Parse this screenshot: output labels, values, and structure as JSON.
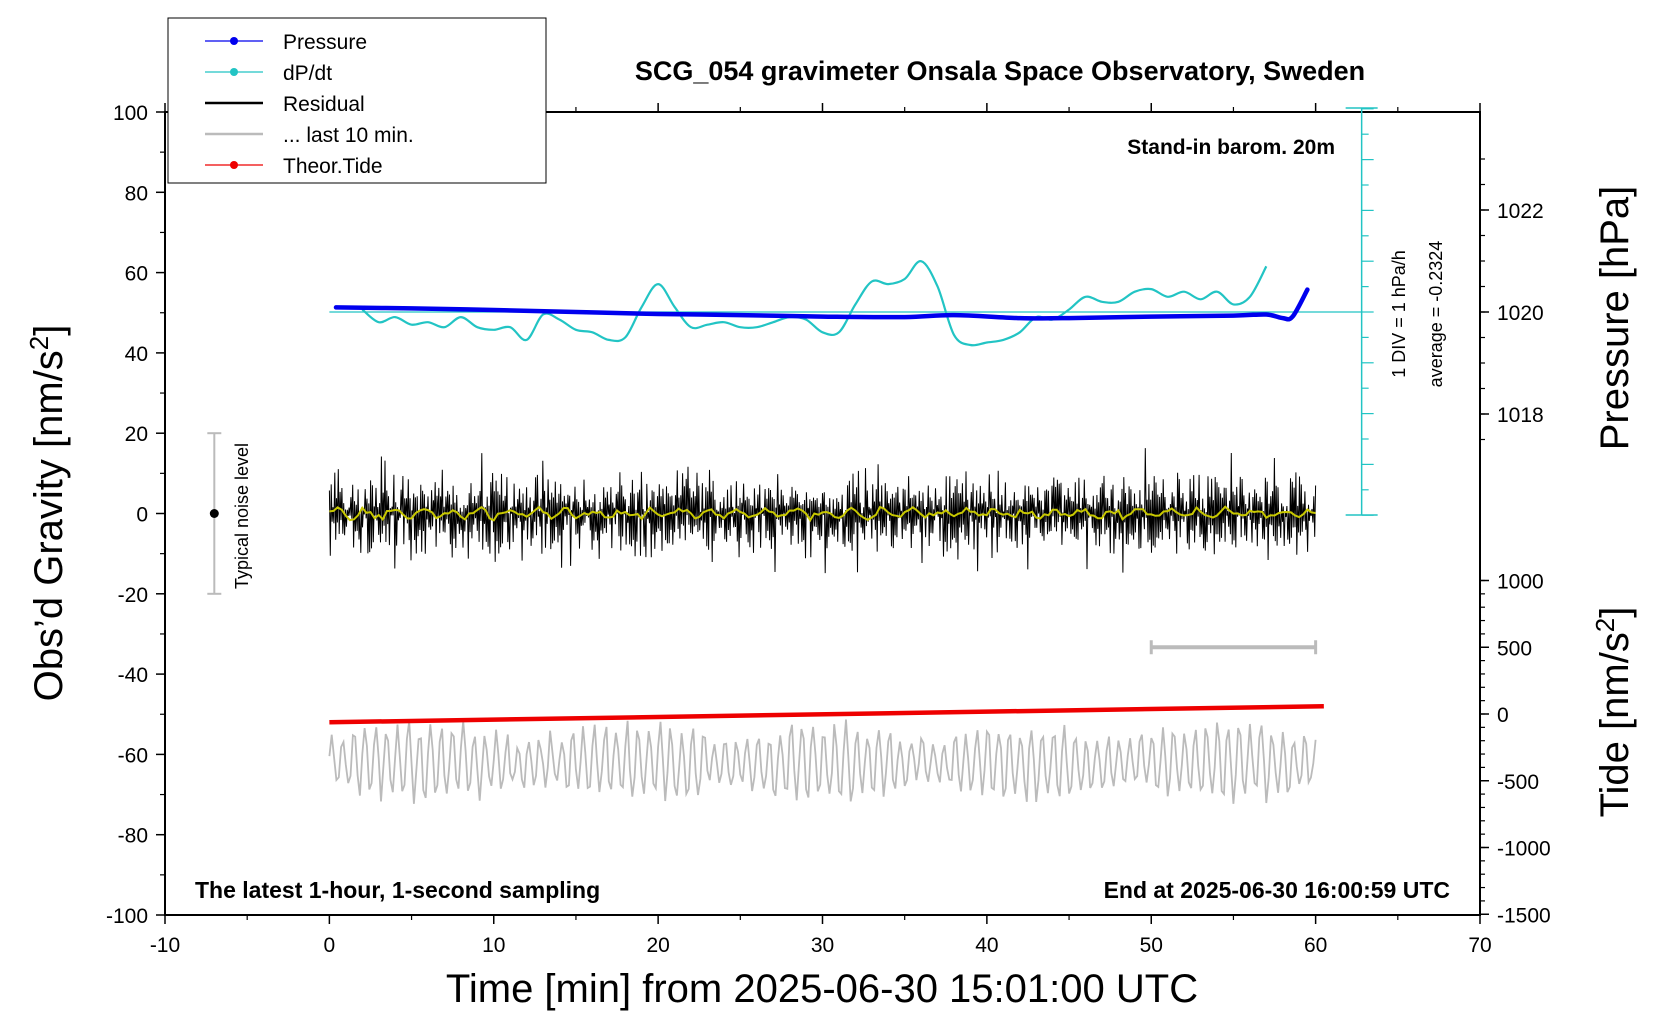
{
  "chart_data": {
    "type": "line",
    "title": "SCG_054 gravimeter Onsala Space Observatory, Sweden",
    "xlabel": "Time [min] from 2025-06-30 15:01:00 UTC",
    "ylabel": "Obs'd Gravity [nm/s²]",
    "ylabel_right_top": "Pressure [hPa]",
    "ylabel_right_bottom": "Tide [nm/s²]",
    "xlim": [
      -10,
      70
    ],
    "ylim": [
      -100,
      100
    ],
    "xticks": [
      "-10",
      "0",
      "10",
      "20",
      "30",
      "40",
      "50",
      "60",
      "70"
    ],
    "yticks": [
      "100",
      "80",
      "60",
      "40",
      "20",
      "0",
      "-20",
      "-40",
      "-60",
      "-80",
      "-100"
    ],
    "pressure_ticks": [
      "1022",
      "1020",
      "1018"
    ],
    "tide_ticks": [
      "1000",
      "500",
      "0",
      "-500",
      "-1000",
      "-1500"
    ],
    "annotations": {
      "barometer": "Stand-in barom. 20m",
      "div_label": "1 DIV = 1 hPa/h",
      "average_label": "average = -0.2324",
      "noise_label": "Typical noise level",
      "bottom_left": "The latest 1-hour, 1-second sampling",
      "bottom_right": "End at 2025-06-30 16:00:59 UTC"
    },
    "legend": [
      {
        "name": "Pressure",
        "color": "#0000ee",
        "marker": true
      },
      {
        "name": "dP/dt",
        "color": "#22c4c4",
        "marker": true
      },
      {
        "name": "Residual",
        "color": "#000000",
        "marker": false
      },
      {
        "name": "... last 10 min.",
        "color": "#bbbbbb",
        "marker": false
      },
      {
        "name": "Theor.Tide",
        "color": "#ee0000",
        "marker": true
      }
    ],
    "series": [
      {
        "name": "Pressure",
        "unit": "hPa",
        "x": [
          0.4,
          5,
          10,
          15,
          20,
          25,
          30,
          35,
          38,
          42,
          45,
          50,
          55,
          57,
          58,
          58.6,
          59.5
        ],
        "values": [
          1020.09,
          1020.07,
          1020.04,
          1020.0,
          1019.96,
          1019.94,
          1019.91,
          1019.9,
          1019.94,
          1019.88,
          1019.88,
          1019.91,
          1019.93,
          1019.95,
          1019.88,
          1019.91,
          1020.44
        ]
      },
      {
        "name": "dP/dt",
        "unit": "hPa/h",
        "x": [
          2,
          3,
          4,
          5,
          6,
          7,
          8,
          9,
          10,
          11,
          12,
          13,
          14,
          15,
          16,
          17,
          18,
          19,
          20,
          21,
          22,
          23,
          24,
          25,
          26,
          27,
          28,
          29,
          30,
          31,
          32,
          33,
          34,
          35,
          36,
          37,
          38,
          39,
          40,
          41,
          42,
          43,
          44,
          45,
          46,
          47,
          48,
          49,
          50,
          51,
          52,
          53,
          54,
          55,
          56,
          57
        ],
        "values": [
          0.1,
          -0.4,
          -0.2,
          -0.5,
          -0.4,
          -0.6,
          -0.2,
          -0.6,
          -0.7,
          -0.6,
          -1.1,
          -0.1,
          -0.3,
          -0.7,
          -0.8,
          -1.1,
          -1.0,
          0.2,
          1.1,
          0.2,
          -0.6,
          -0.5,
          -0.4,
          -0.6,
          -0.6,
          -0.4,
          -0.2,
          -0.3,
          -0.8,
          -0.8,
          0.3,
          1.2,
          1.1,
          1.3,
          2.0,
          1.0,
          -0.9,
          -1.3,
          -1.2,
          -1.1,
          -0.8,
          -0.2,
          -0.3,
          0.1,
          0.6,
          0.4,
          0.4,
          0.8,
          0.9,
          0.6,
          0.8,
          0.5,
          0.8,
          0.3,
          0.6,
          1.8
        ]
      },
      {
        "name": "Residual",
        "unit": "nm/s²",
        "x": [
          0,
          60
        ],
        "amplitude": 12,
        "envelope_max": 17
      },
      {
        "name": "... last 10 min.",
        "unit": "nm/s²",
        "x": [
          0,
          60
        ],
        "center": -62,
        "amplitude": 9
      },
      {
        "name": "Theor.Tide",
        "unit": "nm/s²",
        "x": [
          0,
          60.5
        ],
        "values": [
          -52,
          -48
        ]
      }
    ],
    "noise_level_bar": {
      "x": -7,
      "ylim": [
        -20,
        20
      ]
    },
    "scale_bar": {
      "xlim": [
        50,
        60
      ],
      "y_tide": 500
    }
  }
}
